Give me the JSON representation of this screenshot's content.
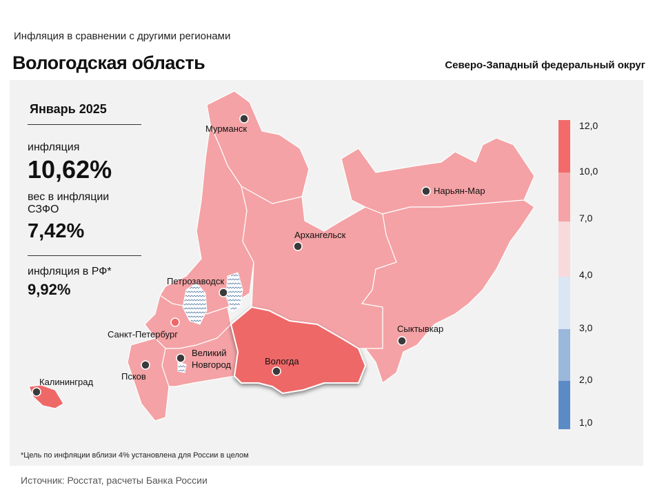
{
  "header": {
    "subtitle": "Инфляция  в сравнении  с другими  регионами",
    "region": "Вологодская область",
    "district": "Северо-Западный федеральный округ"
  },
  "stats": {
    "period": "Январь 2025",
    "inflation_label": "инфляция",
    "inflation_value": "10,62%",
    "weight_label": "вес в инфляции  СЗФО",
    "weight_value": "7,42%",
    "rf_label": "инфляция  в РФ*",
    "rf_value": "9,92%"
  },
  "cities": {
    "murmansk": "Мурманск",
    "naryan_mar": "Нарьян-Мар",
    "arkhangelsk": "Архангельск",
    "petrozavodsk": "Петрозаводск",
    "spb": "Санкт-Петербург",
    "velikiy_line1": "Великий",
    "velikiy_line2": "Новгород",
    "pskov": "Псков",
    "vologda": "Вологда",
    "syktyvkar": "Сыктывкар",
    "kaliningrad": "Калининград"
  },
  "legend": {
    "labels": [
      "12,0",
      "10,0",
      "7,0",
      "4,0",
      "3,0",
      "2,0",
      "1,0"
    ],
    "colors": [
      "#f26a6a",
      "#f5a3a6",
      "#f8d9dc",
      "#dbe6f5",
      "#9ab7dc",
      "#5b8bc6"
    ]
  },
  "colors": {
    "highlight": "#ef6868",
    "mid": "#f4a2a5",
    "border": "#ffffff"
  },
  "footnote": "*Цель по инфляции вблизи 4% установлена для России в целом",
  "source": "Источник:  Росстат,  расчеты Банка  России"
}
